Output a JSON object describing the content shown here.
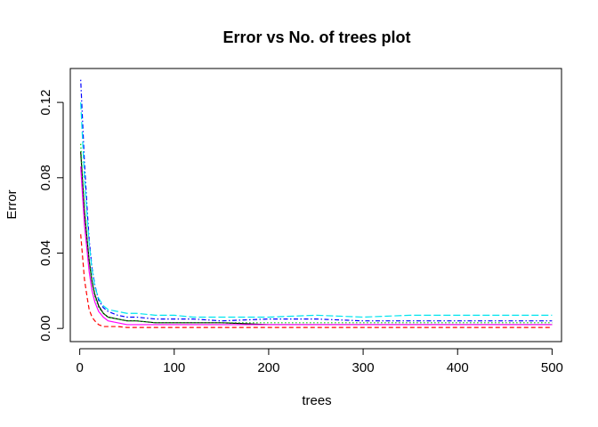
{
  "chart_data": {
    "type": "line",
    "title": "Error vs No. of trees plot",
    "xlabel": "trees",
    "ylabel": "Error",
    "xlim": [
      -10,
      510
    ],
    "ylim": [
      -0.007,
      0.138
    ],
    "xticks": [
      0,
      100,
      200,
      300,
      400,
      500
    ],
    "yticks": [
      0.0,
      0.04,
      0.08,
      0.12
    ],
    "xtick_labels": [
      "0",
      "100",
      "200",
      "300",
      "400",
      "500"
    ],
    "ytick_labels": [
      "0.00",
      "0.04",
      "0.08",
      "0.12"
    ],
    "grid": false,
    "legend": "none",
    "series": [
      {
        "color": "#000000",
        "dash": "solid",
        "x": [
          1,
          3,
          5,
          8,
          10,
          13,
          16,
          20,
          25,
          30,
          40,
          50,
          60,
          80,
          100,
          120,
          150,
          200,
          250,
          300,
          350,
          400,
          450,
          500
        ],
        "y": [
          0.094,
          0.078,
          0.062,
          0.046,
          0.036,
          0.025,
          0.018,
          0.012,
          0.008,
          0.006,
          0.005,
          0.004,
          0.004,
          0.003,
          0.003,
          0.003,
          0.003,
          0.002,
          0.002,
          0.002,
          0.002,
          0.002,
          0.002,
          0.002
        ]
      },
      {
        "color": "#FF0000",
        "dash": "dashed",
        "x": [
          1,
          3,
          5,
          8,
          10,
          13,
          16,
          20,
          25,
          30,
          40,
          50,
          60,
          80,
          100,
          120,
          150,
          200,
          250,
          300,
          350,
          400,
          450,
          500
        ],
        "y": [
          0.05,
          0.038,
          0.026,
          0.016,
          0.01,
          0.006,
          0.004,
          0.002,
          0.001,
          0.001,
          0.001,
          0.0005,
          0.0005,
          0.0005,
          0.0005,
          0.0005,
          0.0005,
          0.0005,
          0.0005,
          0.0005,
          0.0005,
          0.0005,
          0.0005,
          0.0005
        ]
      },
      {
        "color": "#00CD00",
        "dash": "dotted",
        "x": [
          1,
          3,
          5,
          8,
          10,
          13,
          16,
          20,
          25,
          30,
          40,
          50,
          60,
          80,
          100,
          120,
          150,
          200,
          250,
          300,
          350,
          400,
          450,
          500
        ],
        "y": [
          0.098,
          0.08,
          0.064,
          0.046,
          0.035,
          0.024,
          0.017,
          0.011,
          0.008,
          0.006,
          0.005,
          0.004,
          0.004,
          0.003,
          0.003,
          0.003,
          0.003,
          0.003,
          0.003,
          0.003,
          0.003,
          0.003,
          0.003,
          0.003
        ]
      },
      {
        "color": "#0000FF",
        "dash": "dotdash",
        "x": [
          1,
          3,
          5,
          8,
          10,
          13,
          16,
          20,
          25,
          30,
          40,
          50,
          60,
          80,
          100,
          120,
          150,
          200,
          250,
          300,
          350,
          400,
          450,
          500
        ],
        "y": [
          0.132,
          0.11,
          0.088,
          0.062,
          0.047,
          0.032,
          0.023,
          0.015,
          0.011,
          0.009,
          0.007,
          0.006,
          0.006,
          0.005,
          0.005,
          0.005,
          0.004,
          0.005,
          0.005,
          0.004,
          0.004,
          0.004,
          0.004,
          0.004
        ]
      },
      {
        "color": "#00E5EE",
        "dash": "longdash",
        "x": [
          1,
          3,
          5,
          8,
          10,
          13,
          16,
          20,
          25,
          30,
          40,
          50,
          60,
          80,
          100,
          120,
          150,
          200,
          250,
          300,
          350,
          400,
          450,
          500
        ],
        "y": [
          0.12,
          0.1,
          0.08,
          0.058,
          0.045,
          0.031,
          0.022,
          0.016,
          0.012,
          0.01,
          0.009,
          0.008,
          0.008,
          0.007,
          0.007,
          0.006,
          0.006,
          0.006,
          0.007,
          0.006,
          0.007,
          0.007,
          0.007,
          0.007
        ]
      },
      {
        "color": "#FF00FF",
        "dash": "solid",
        "x": [
          1,
          3,
          5,
          8,
          10,
          13,
          16,
          20,
          25,
          30,
          40,
          50,
          60,
          80,
          100,
          120,
          150,
          200,
          250,
          300,
          350,
          400,
          450,
          500
        ],
        "y": [
          0.086,
          0.07,
          0.055,
          0.04,
          0.03,
          0.02,
          0.014,
          0.009,
          0.006,
          0.004,
          0.003,
          0.002,
          0.002,
          0.002,
          0.002,
          0.002,
          0.002,
          0.002,
          0.002,
          0.002,
          0.002,
          0.002,
          0.002,
          0.002
        ]
      }
    ]
  }
}
